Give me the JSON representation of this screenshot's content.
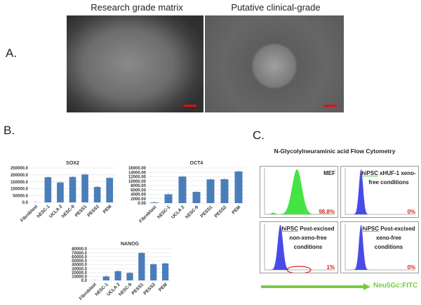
{
  "panel_a": {
    "letter": "A.",
    "left_title": "Research grade matrix",
    "right_title": "Putative clinical-grade"
  },
  "panel_b": {
    "letter": "B."
  },
  "panel_c": {
    "letter": "C.",
    "title": "N-Glycolylneuraminic acid Flow Cytometry",
    "axis_label": "Neu5Gc:FITC",
    "panels": [
      {
        "hi": "",
        "label": "MEF",
        "pct": "98.8%",
        "color": "#44e444",
        "peak_log": 1.85,
        "width": 0.28,
        "small_peak": true
      },
      {
        "hi": "hiPSC",
        "label": " xHUF-1 xeno-free conditions",
        "pct": "0%",
        "color": "#4a4ae8",
        "peak_log": 0.9,
        "width": 0.12
      },
      {
        "hi": "hiPSC",
        "label": " Post-excised non-xeno-free conditions",
        "pct": "1%",
        "color": "#4a4ae8",
        "peak_log": 0.9,
        "width": 0.15,
        "circle": true
      },
      {
        "hi": "hiPSC",
        "label": " Post-excised xeno-free conditions",
        "pct": "0%",
        "color": "#4a4ae8",
        "peak_log": 0.9,
        "width": 0.12
      }
    ]
  },
  "chart_data": [
    {
      "type": "bar",
      "title": "SOX2",
      "categories": [
        "Fibroblast",
        "hESC-1",
        "UCLA 2",
        "hESC-9",
        "PESS1",
        "PESS2",
        "PEM"
      ],
      "values": [
        0,
        183000,
        145000,
        185000,
        203000,
        112000,
        178000
      ],
      "ylim": [
        0,
        250000
      ],
      "yticks": [
        "0.0",
        "50000.0",
        "100000.0",
        "150000.0",
        "200000.0",
        "250000.0"
      ],
      "color": "#4a7ebb"
    },
    {
      "type": "bar",
      "title": "OCT4",
      "categories": [
        "Fibroblast",
        "hESC-1",
        "UCLA 2",
        "hESC-9",
        "PESS1",
        "PESS2",
        "PEM"
      ],
      "values": [
        300,
        4000,
        12100,
        5100,
        10800,
        10900,
        14400
      ],
      "ylim": [
        0,
        16000
      ],
      "yticks": [
        "0.00",
        "2000.00",
        "4000.00",
        "6000.00",
        "8000.00",
        "10000.00",
        "12000.00",
        "14000.00",
        "16000.00"
      ],
      "color": "#4a7ebb"
    },
    {
      "type": "bar",
      "title": "NANOG",
      "categories": [
        "Fibroblast",
        "hESC-1",
        "UCLA 2",
        "hESC-9",
        "PESS1",
        "PESS2",
        "PEM"
      ],
      "values": [
        0,
        10000,
        23500,
        19000,
        69500,
        41000,
        43000
      ],
      "ylim": [
        0,
        80000
      ],
      "yticks": [
        "0.0",
        "10000.0",
        "20000.0",
        "30000.0",
        "40000.0",
        "50000.0",
        "60000.0",
        "70000.0",
        "80000.0"
      ],
      "color": "#4a7ebb"
    }
  ]
}
